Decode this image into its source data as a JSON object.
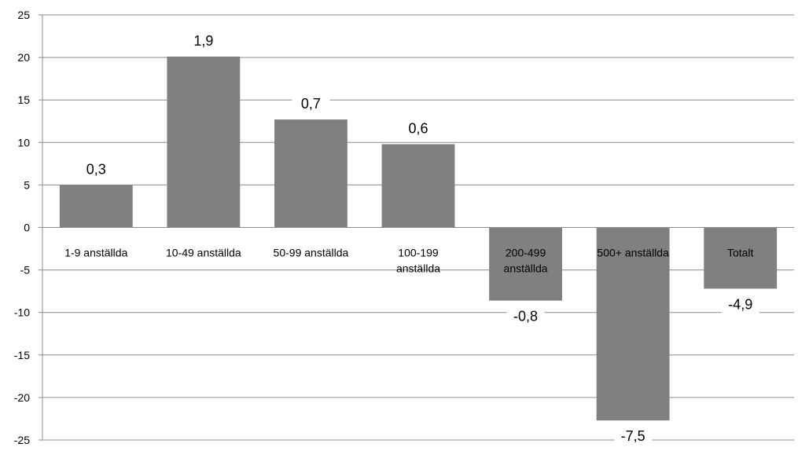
{
  "chart_data": {
    "type": "bar",
    "title": "",
    "xlabel": "",
    "ylabel": "",
    "ylim": [
      -25,
      25
    ],
    "yticks": [
      "25",
      "20",
      "15",
      "10",
      "5",
      "0",
      "-5",
      "-10",
      "-15",
      "-20",
      "-25"
    ],
    "grid": true,
    "legend": "none",
    "categories": [
      [
        "1-9 anställda"
      ],
      [
        "10-49 anställda"
      ],
      [
        "50-99 anställda"
      ],
      [
        "100-199",
        "anställda"
      ],
      [
        "200-499",
        "anställda"
      ],
      [
        "500+ anställda"
      ],
      [
        "Totalt"
      ]
    ],
    "values": [
      5,
      20.1,
      12.7,
      9.8,
      -8.6,
      -22.7,
      -7.2
    ],
    "data_labels": [
      "0,3",
      "1,9",
      "0,7",
      "0,6",
      "-0,8",
      "-7,5",
      "-4,9"
    ],
    "colors": {
      "bar": "#808080",
      "grid": "#8c8c8c",
      "axis": "#8c8c8c"
    }
  }
}
